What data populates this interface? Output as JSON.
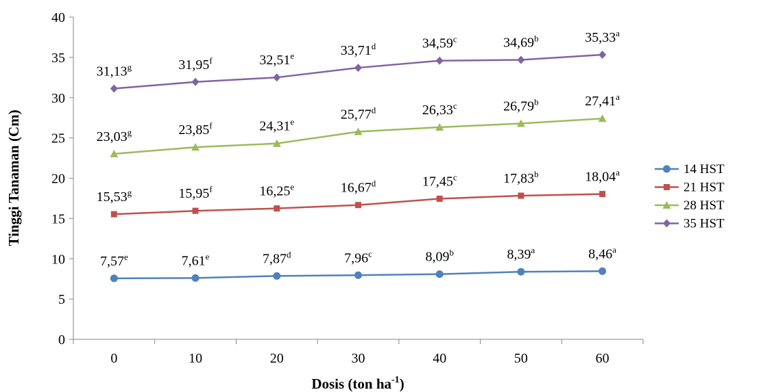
{
  "chart_data": {
    "type": "line",
    "title": "",
    "xlabel": "Dosis (ton ha",
    "xlabel_sup": "-1",
    "xlabel_end": ")",
    "ylabel": "Tinggi Tanaman (Cm)",
    "x": [
      0,
      10,
      20,
      30,
      40,
      50,
      60
    ],
    "x_tick_labels": [
      "0",
      "10",
      "20",
      "30",
      "40",
      "50",
      "60"
    ],
    "ylim": [
      0,
      40
    ],
    "y_ticks": [
      0,
      5,
      10,
      15,
      20,
      25,
      30,
      35,
      40
    ],
    "grid": false,
    "legend_position": "right",
    "series": [
      {
        "name": "14 HST",
        "color": "#4F81BD",
        "marker": "circle",
        "values": [
          7.57,
          7.61,
          7.87,
          7.96,
          8.09,
          8.39,
          8.46
        ],
        "labels": [
          "7,57",
          "7,61",
          "7,87",
          "7,96",
          "8,09",
          "8,39",
          "8,46"
        ],
        "letters": [
          "e",
          "e",
          "d",
          "c",
          "b",
          "a",
          "a"
        ]
      },
      {
        "name": "21 HST",
        "color": "#C0504D",
        "marker": "square",
        "values": [
          15.53,
          15.95,
          16.25,
          16.67,
          17.45,
          17.83,
          18.04
        ],
        "labels": [
          "15,53",
          "15,95",
          "16,25",
          "16,67",
          "17,45",
          "17,83",
          "18,04"
        ],
        "letters": [
          "g",
          "f",
          "e",
          "d",
          "c",
          "b",
          "a"
        ]
      },
      {
        "name": "28 HST",
        "color": "#9BBB59",
        "marker": "triangle",
        "values": [
          23.03,
          23.85,
          24.31,
          25.77,
          26.33,
          26.79,
          27.41
        ],
        "labels": [
          "23,03",
          "23,85",
          "24,31",
          "25,77",
          "26,33",
          "26,79",
          "27,41"
        ],
        "letters": [
          "g",
          "f",
          "e",
          "d",
          "c",
          "b",
          "a"
        ]
      },
      {
        "name": "35 HST",
        "color": "#8064A2",
        "marker": "diamond",
        "values": [
          31.13,
          31.95,
          32.51,
          33.71,
          34.59,
          34.69,
          35.33
        ],
        "labels": [
          "31,13",
          "31,95",
          "32,51",
          "33,71",
          "34,59",
          "34,69",
          "35,33"
        ],
        "letters": [
          "g",
          "f",
          "e",
          "d",
          "c",
          "b",
          "a"
        ]
      }
    ]
  }
}
